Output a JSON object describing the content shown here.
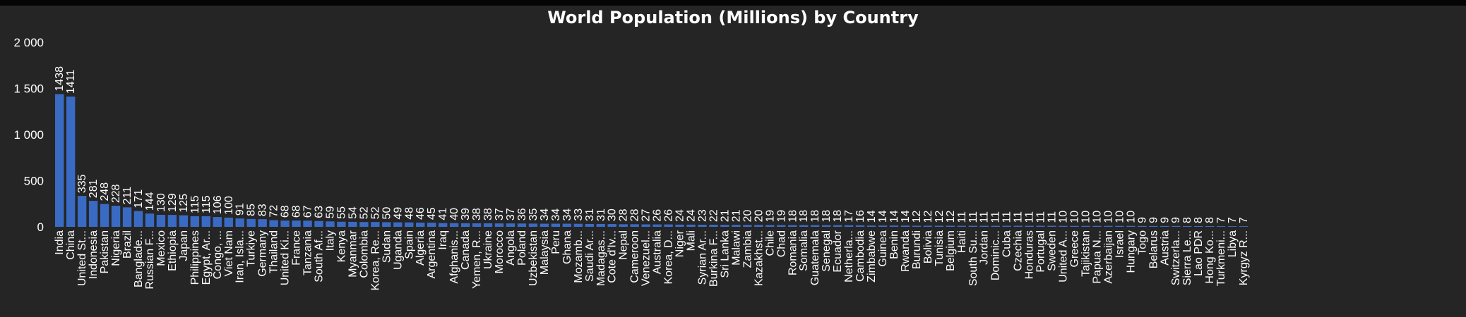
{
  "chart_data": {
    "type": "bar",
    "title": "World Population (Millions) by Country",
    "ylim": [
      0,
      2000
    ],
    "yticks": [
      "0",
      "500",
      "1 000",
      "1 500",
      "2 000"
    ],
    "grid": false,
    "colors": {
      "bar": "#3a6bc4",
      "background": "#252525",
      "text": "#ffffff"
    },
    "categories": [
      "India",
      "China",
      "United St...",
      "Indonesia",
      "Pakistan",
      "Nigeria",
      "Brazil",
      "Banglade...",
      "Russian F...",
      "Mexico",
      "Ethiopia",
      "Japan",
      "Philippines",
      "Egypt, Ar...",
      "Congo, ...",
      "Viet Nam",
      "Iran, Isla...",
      "Turkiye",
      "Germany",
      "Thailand",
      "United Ki...",
      "France",
      "Tanzania",
      "South Af...",
      "Italy",
      "Kenya",
      "Myanmar",
      "Colombia",
      "Korea, Re...",
      "Sudan",
      "Uganda",
      "Spain",
      "Algeria",
      "Argentina",
      "Iraq",
      "Afghanis...",
      "Canada",
      "Yemen, R...",
      "Ukraine",
      "Morocco",
      "Angola",
      "Poland",
      "Uzbekistan",
      "Malaysia",
      "Peru",
      "Ghana",
      "Mozamb...",
      "Saudi Ar...",
      "Madagas...",
      "Cote d'Iv...",
      "Nepal",
      "Cameroon",
      "Venezuel...",
      "Australia",
      "Korea, D...",
      "Niger",
      "Mali",
      "Syrian Ar...",
      "Burkina F...",
      "Sri Lanka",
      "Malawi",
      "Zambia",
      "Kazakhst...",
      "Chile",
      "Chad",
      "Romania",
      "Somalia",
      "Guatemala",
      "Senegal",
      "Ecuador",
      "Netherla...",
      "Cambodia",
      "Zimbabwe",
      "Guinea",
      "Benin",
      "Rwanda",
      "Burundi",
      "Bolivia",
      "Tunisia",
      "Belgium",
      "Haiti",
      "South Su...",
      "Jordan",
      "Dominic...",
      "Cuba",
      "Czechia",
      "Honduras",
      "Portugal",
      "Sweden",
      "United A...",
      "Greece",
      "Tajikistan",
      "Papua N...",
      "Azerbaijan",
      "Israel",
      "Hungary",
      "Togo",
      "Belarus",
      "Austria",
      "Switzerla...",
      "Sierra Le...",
      "Lao PDR",
      "Hong Ko...",
      "Turkmeni...",
      "Libya",
      "Kyrgyz R..."
    ],
    "values": [
      1438,
      1411,
      335,
      281,
      248,
      228,
      211,
      171,
      144,
      130,
      129,
      125,
      115,
      115,
      106,
      100,
      91,
      85,
      83,
      72,
      68,
      68,
      67,
      63,
      59,
      55,
      54,
      52,
      52,
      50,
      49,
      48,
      46,
      45,
      41,
      40,
      39,
      38,
      38,
      37,
      37,
      36,
      35,
      34,
      34,
      34,
      33,
      31,
      31,
      30,
      28,
      28,
      27,
      26,
      26,
      24,
      24,
      23,
      22,
      21,
      21,
      20,
      20,
      19,
      19,
      18,
      18,
      18,
      18,
      18,
      17,
      16,
      14,
      14,
      14,
      14,
      12,
      12,
      12,
      12,
      11,
      11,
      11,
      11,
      11,
      11,
      11,
      11,
      11,
      10,
      10,
      10,
      10,
      10,
      10,
      10,
      9,
      9,
      9,
      9,
      8,
      8,
      8,
      7,
      7,
      7
    ]
  }
}
